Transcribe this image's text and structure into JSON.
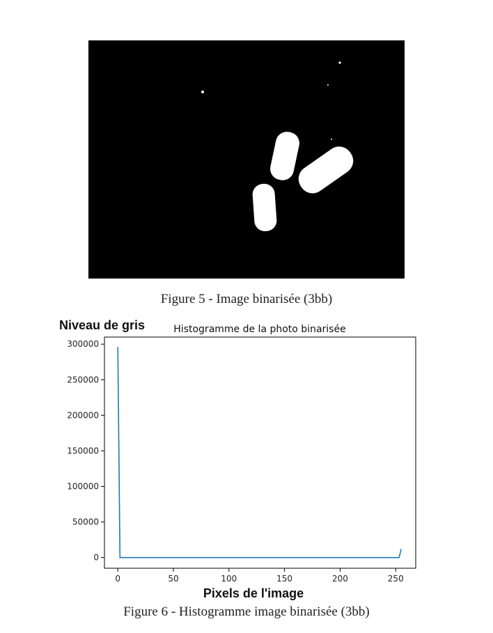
{
  "figure5": {
    "caption": "Figure 5 - Image binarisée (3bb)",
    "colors": {
      "background": "#000000",
      "foreground": "#ffffff"
    }
  },
  "figure6": {
    "caption": "Figure 6 - Histogramme image binarisée (3bb)"
  },
  "chart_data": {
    "type": "line",
    "title": "Histogramme de la photo binarisée",
    "xlabel": "Pixels de l'image",
    "ylabel": "Niveau de gris",
    "xlim": [
      -12,
      268
    ],
    "ylim": [
      -15000,
      310000
    ],
    "xticks": [
      0,
      50,
      100,
      150,
      200,
      250
    ],
    "yticks": [
      0,
      50000,
      100000,
      150000,
      200000,
      250000,
      300000
    ],
    "grid": false,
    "line_color": "#1f77b4",
    "series": [
      {
        "x": [
          0,
          2,
          4,
          50,
          100,
          150,
          200,
          250,
          253,
          255
        ],
        "y": [
          296000,
          0,
          0,
          0,
          0,
          0,
          0,
          0,
          0,
          12000
        ]
      }
    ]
  }
}
